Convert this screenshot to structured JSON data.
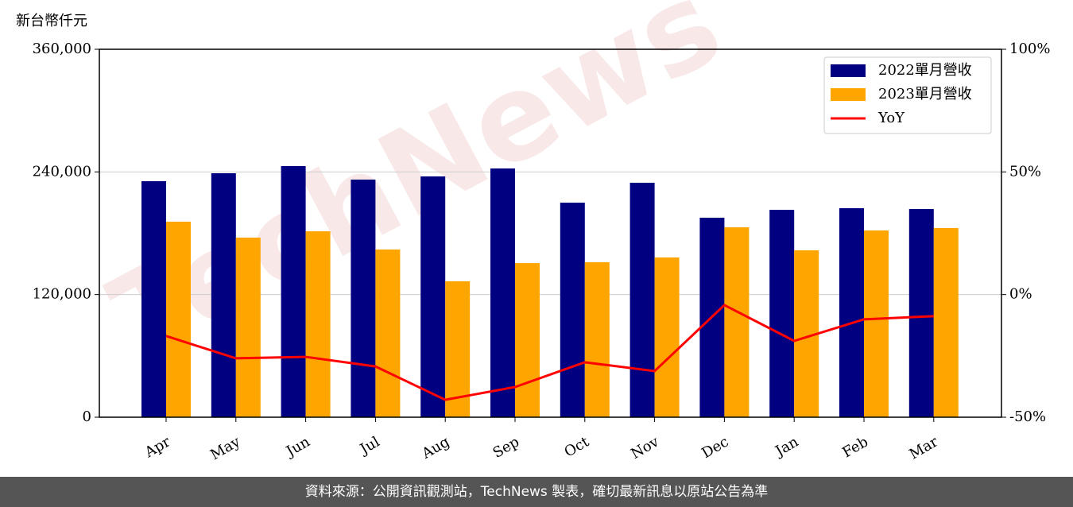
{
  "chart_data": {
    "type": "bar",
    "y_label": "新台幣仟元",
    "watermark": "TechNews",
    "categories": [
      "Apr",
      "May",
      "Jun",
      "Jul",
      "Aug",
      "Sep",
      "Oct",
      "Nov",
      "Dec",
      "Jan",
      "Feb",
      "Mar"
    ],
    "series": [
      {
        "name": "2022單月營收",
        "color": "#000080",
        "values": [
          230900,
          238700,
          245700,
          232500,
          235600,
          243400,
          209900,
          229400,
          195200,
          202900,
          204500,
          203700
        ]
      },
      {
        "name": "2023單月營收",
        "color": "#ffa500",
        "values": [
          191300,
          175700,
          181900,
          164100,
          133000,
          150800,
          151600,
          156300,
          185800,
          163300,
          182700,
          185100
        ]
      },
      {
        "name": "YoY",
        "type": "line",
        "axis": "y2",
        "color": "#ff0000",
        "values": [
          -16.9,
          -26.0,
          -25.4,
          -29.3,
          -42.9,
          -37.7,
          -27.6,
          -31.2,
          -4.3,
          -18.9,
          -10.1,
          -8.8
        ]
      }
    ],
    "ylim": [
      0,
      360000
    ],
    "yticks": [
      0,
      {
        "value": 120000,
        "label": "120,000"
      },
      {
        "value": 240000,
        "label": "240,000"
      },
      {
        "value": 360000,
        "label": "360,000"
      }
    ],
    "y2lim": [
      -50,
      100
    ],
    "y2ticks": [
      {
        "value": -50,
        "label": "-50%"
      },
      {
        "value": 0,
        "label": "0%"
      },
      {
        "value": 50,
        "label": "50%"
      },
      {
        "value": 100,
        "label": "100%"
      }
    ],
    "grid": true,
    "legend": "upper right",
    "footer": "資料來源：公開資訊觀測站，TechNews 製表，確切最新訊息以原站公告為準"
  }
}
